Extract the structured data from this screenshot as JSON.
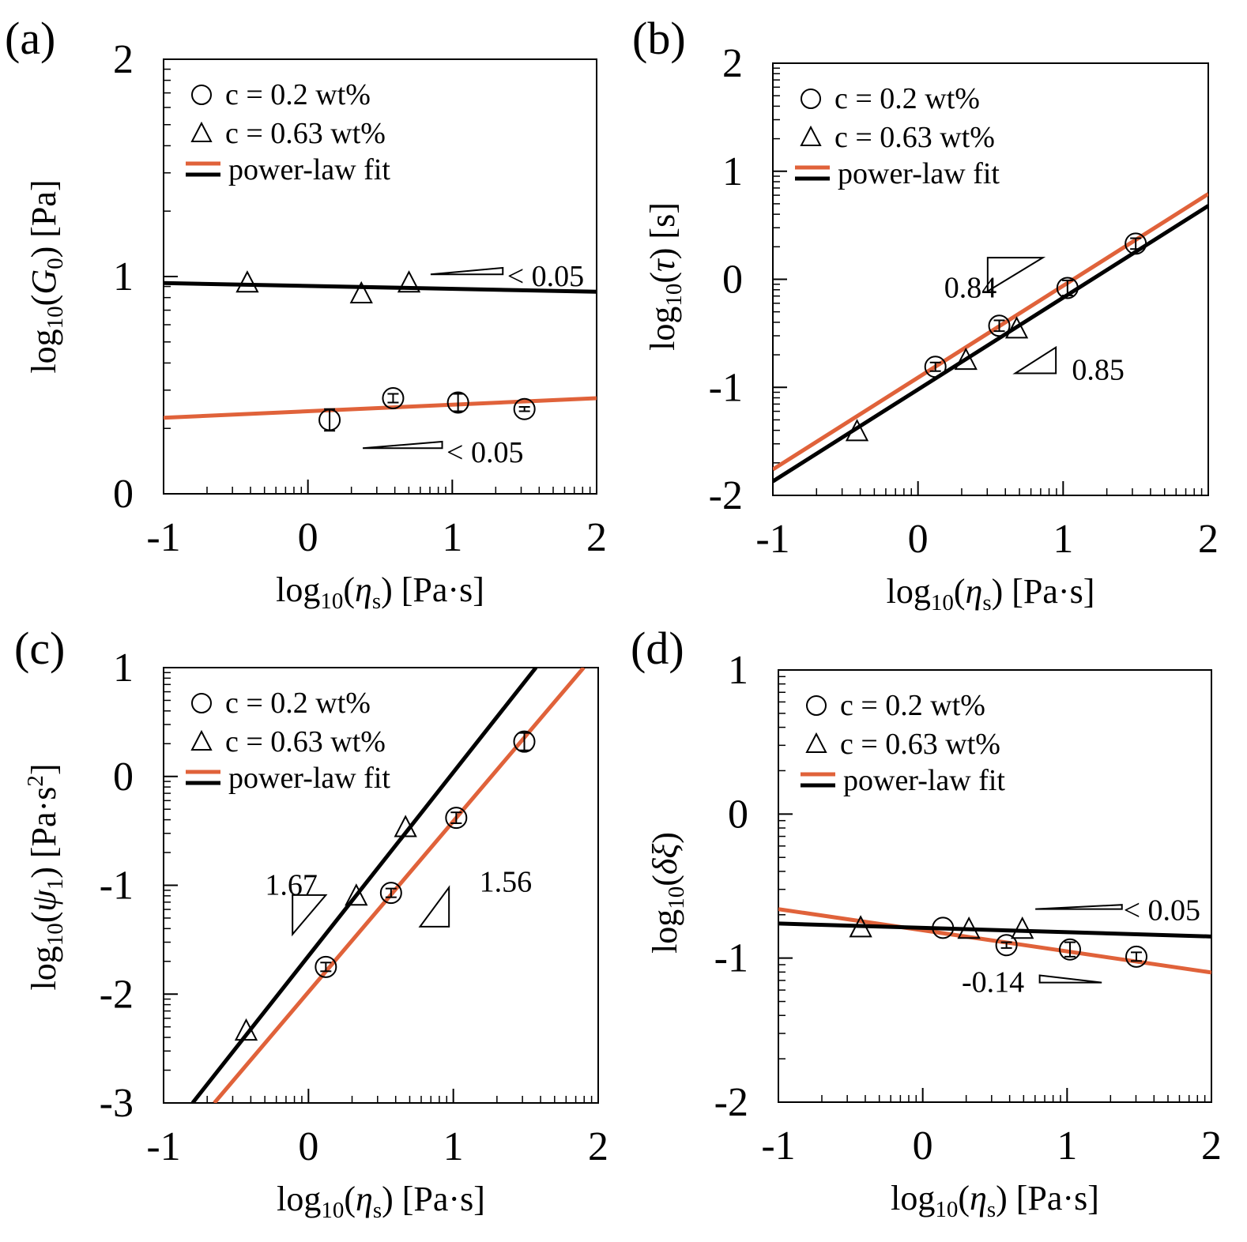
{
  "figure": {
    "colors": {
      "orange": "#E0623A",
      "black": "#000000",
      "frame": "#000000"
    }
  },
  "chart_data": [
    {
      "panel_label": "(a)",
      "type": "scatter",
      "xlabel": "log10(ηs) [Pa·s]",
      "xlabel_parts": {
        "prefix": "log",
        "sub": "10",
        "open": "(",
        "sym": "η",
        "symsub": "s",
        "close": ")",
        "unit": " [Pa·s]"
      },
      "ylabel": "log10(G0) [Pa]",
      "ylabel_parts": {
        "prefix": "log",
        "sub": "10",
        "open": "(",
        "sym": "G",
        "symsub": "0",
        "close": ")",
        "unit": " [Pa]"
      },
      "xlim": [
        -1,
        2
      ],
      "ylim": [
        0,
        2
      ],
      "xticks": [
        "-1",
        "0",
        "1",
        "2"
      ],
      "yticks": [
        "0",
        "1",
        "2"
      ],
      "legend": {
        "placement": "top-left",
        "items": [
          "c = 0.2 wt%",
          "c = 0.63 wt%",
          "power-law fit"
        ]
      },
      "series": [
        {
          "name": "c = 0.2 wt%",
          "marker": "circle",
          "x": [
            0.15,
            0.59,
            1.04,
            1.5
          ],
          "y": [
            0.34,
            0.44,
            0.42,
            0.39
          ],
          "err": [
            0.05,
            0.02,
            0.04,
            0.01
          ]
        },
        {
          "name": "c = 0.63 wt%",
          "marker": "triangle",
          "x": [
            -0.42,
            0.37,
            0.7
          ],
          "y": [
            0.97,
            0.92,
            0.97
          ],
          "err": [
            0,
            0,
            0
          ]
        }
      ],
      "fits": [
        {
          "color": "orange",
          "x": [
            -1,
            2
          ],
          "y": [
            0.35,
            0.44
          ]
        },
        {
          "color": "black",
          "x": [
            -1,
            2
          ],
          "y": [
            0.97,
            0.93
          ]
        }
      ],
      "slopes": [
        {
          "label": "< 0.05",
          "shape": "wedge-up",
          "x": 0.85,
          "y": 1.01,
          "w": 0.5,
          "dh": 0.03,
          "tx": 1.38,
          "ty": 1.0
        },
        {
          "label": "< 0.05",
          "shape": "wedge-up",
          "x": 0.38,
          "y": 0.21,
          "w": 0.55,
          "dh": 0.03,
          "tx": 0.96,
          "ty": 0.19
        }
      ]
    },
    {
      "panel_label": "(b)",
      "type": "scatter",
      "xlabel": "log10(ηs) [Pa·s]",
      "xlabel_parts": {
        "prefix": "log",
        "sub": "10",
        "open": "(",
        "sym": "η",
        "symsub": "s",
        "close": ")",
        "unit": " [Pa·s]"
      },
      "ylabel": "log10(τ) [s]",
      "ylabel_parts": {
        "prefix": "log",
        "sub": "10",
        "open": "(",
        "sym": "τ",
        "symsub": "",
        "close": ")",
        "unit": " [s]"
      },
      "xlim": [
        -1,
        2
      ],
      "ylim": [
        -2,
        2
      ],
      "xticks": [
        "-1",
        "0",
        "1",
        "2"
      ],
      "yticks": [
        "-2",
        "-1",
        "0",
        "1",
        "2"
      ],
      "legend": {
        "placement": "top-left",
        "items": [
          "c = 0.2 wt%",
          "c = 0.63 wt%",
          "power-law fit"
        ]
      },
      "series": [
        {
          "name": "c = 0.2 wt%",
          "marker": "circle",
          "x": [
            0.12,
            0.56,
            1.03,
            1.5
          ],
          "y": [
            -0.81,
            -0.43,
            -0.08,
            0.33
          ],
          "err": [
            0.04,
            0.05,
            0.07,
            0.05
          ]
        },
        {
          "name": "c = 0.63 wt%",
          "marker": "triangle",
          "x": [
            -0.42,
            0.33,
            0.68
          ],
          "y": [
            -1.41,
            -0.75,
            -0.46
          ],
          "err": [
            0,
            0,
            0
          ]
        }
      ],
      "fits": [
        {
          "color": "orange",
          "x": [
            -1,
            2
          ],
          "y": [
            -1.76,
            0.79
          ]
        },
        {
          "color": "black",
          "x": [
            -1,
            2
          ],
          "y": [
            -1.87,
            0.68
          ]
        }
      ],
      "slopes": [
        {
          "label": "0.84",
          "shape": "tri-upper",
          "x": 0.48,
          "y": -0.11,
          "w": 0.38,
          "dh": 0.31,
          "tx": 0.18,
          "ty": -0.08
        },
        {
          "label": "0.85",
          "shape": "tri-lower",
          "x": 0.67,
          "y": -0.87,
          "w": 0.28,
          "dh": 0.24,
          "tx": 1.06,
          "ty": -0.84
        }
      ]
    },
    {
      "panel_label": "(c)",
      "type": "scatter",
      "xlabel": "log10(ηs) [Pa·s]",
      "xlabel_parts": {
        "prefix": "log",
        "sub": "10",
        "open": "(",
        "sym": "η",
        "symsub": "s",
        "close": ")",
        "unit": " [Pa·s]"
      },
      "ylabel": "log10(ψ1) [Pa·s2]",
      "ylabel_parts": {
        "prefix": "log",
        "sub": "10",
        "open": "(",
        "sym": "ψ",
        "symsub": "1",
        "close": ")",
        "unit": " [Pa·s",
        "unitsup": "2",
        "unitend": "]"
      },
      "xlim": [
        -1,
        2
      ],
      "ylim": [
        -3,
        1
      ],
      "xticks": [
        "-1",
        "0",
        "1",
        "2"
      ],
      "yticks": [
        "-3",
        "-2",
        "-1",
        "0",
        "1"
      ],
      "legend": {
        "placement": "top-left",
        "items": [
          "c = 0.2 wt%",
          "c = 0.63 wt%",
          "power-law fit"
        ]
      },
      "series": [
        {
          "name": "c = 0.2 wt%",
          "marker": "circle",
          "x": [
            0.12,
            0.57,
            1.02,
            1.49
          ],
          "y": [
            -1.75,
            -1.07,
            -0.38,
            0.32
          ],
          "err": [
            0.04,
            0.04,
            0.05,
            0.08
          ]
        },
        {
          "name": "c = 0.63 wt%",
          "marker": "triangle",
          "x": [
            -0.43,
            0.33,
            0.67
          ],
          "y": [
            -2.34,
            -1.1,
            -0.47
          ],
          "err": [
            0,
            0,
            0
          ]
        }
      ],
      "fits": [
        {
          "color": "orange",
          "x": [
            -0.65,
            1.9
          ],
          "y": [
            -3,
            1
          ]
        },
        {
          "color": "black",
          "x": [
            -0.8,
            1.57
          ],
          "y": [
            -3,
            1
          ]
        }
      ],
      "slopes": [
        {
          "label": "1.67",
          "shape": "tri-upper",
          "x": -0.11,
          "y": -1.45,
          "w": 0.23,
          "dh": 0.36,
          "tx": -0.3,
          "ty": -1.0
        },
        {
          "label": "1.56",
          "shape": "tri-lower",
          "x": 0.77,
          "y": -1.38,
          "w": 0.2,
          "dh": 0.36,
          "tx": 1.18,
          "ty": -0.97
        }
      ]
    },
    {
      "panel_label": "(d)",
      "type": "scatter",
      "xlabel": "log10(ηs) [Pa·s]",
      "xlabel_parts": {
        "prefix": "log",
        "sub": "10",
        "open": "(",
        "sym": "η",
        "symsub": "s",
        "close": ")",
        "unit": " [Pa·s]"
      },
      "ylabel": "log10(δξ)",
      "ylabel_parts": {
        "prefix": "log",
        "sub": "10",
        "open": "(",
        "sym": "δξ",
        "symsub": "",
        "close": ")",
        "unit": ""
      },
      "xlim": [
        -1,
        2
      ],
      "ylim": [
        -2,
        1
      ],
      "xticks": [
        "-1",
        "0",
        "1",
        "2"
      ],
      "yticks": [
        "-2",
        "-1",
        "0",
        "1"
      ],
      "legend": {
        "placement": "top-left",
        "items": [
          "c = 0.2 wt%",
          "c = 0.63 wt%",
          "power-law fit"
        ]
      },
      "series": [
        {
          "name": "c = 0.2 wt%",
          "marker": "circle",
          "x": [
            0.14,
            0.58,
            1.02,
            1.48
          ],
          "y": [
            -0.79,
            -0.91,
            -0.94,
            -0.99
          ],
          "err": [
            0,
            0.02,
            0.05,
            0.03
          ]
        },
        {
          "name": "c = 0.63 wt%",
          "marker": "triangle",
          "x": [
            -0.43,
            0.32,
            0.69
          ],
          "y": [
            -0.79,
            -0.8,
            -0.8
          ],
          "err": [
            0,
            0,
            0
          ]
        }
      ],
      "fits": [
        {
          "color": "orange",
          "x": [
            -1,
            2
          ],
          "y": [
            -0.66,
            -1.1
          ]
        },
        {
          "color": "black",
          "x": [
            -1,
            2
          ],
          "y": [
            -0.76,
            -0.85
          ]
        }
      ],
      "slopes": [
        {
          "label": "< 0.05",
          "shape": "wedge-up",
          "x": 0.78,
          "y": -0.66,
          "w": 0.6,
          "dh": 0.03,
          "tx": 1.39,
          "ty": -0.67
        },
        {
          "label": "-0.14",
          "shape": "wedge-down",
          "x": 0.81,
          "y": -1.17,
          "w": 0.43,
          "dh": 0.05,
          "tx": 0.27,
          "ty": -1.17
        }
      ]
    }
  ]
}
